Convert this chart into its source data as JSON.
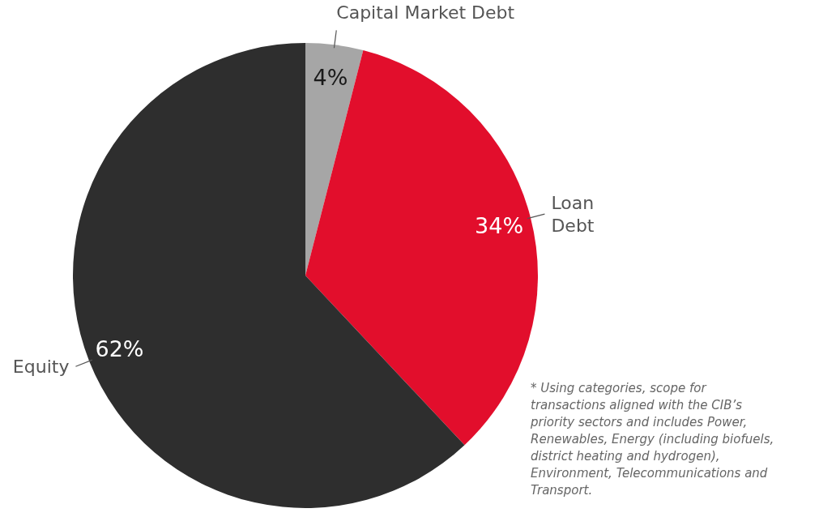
{
  "chart_data": {
    "type": "pie",
    "categories": [
      "Capital Market Debt",
      "Loan Debt",
      "Equity"
    ],
    "values": [
      4,
      34,
      62
    ],
    "colors": [
      "#a6a6a6",
      "#e20e2c",
      "#2e2e2e"
    ],
    "value_labels": [
      "4%",
      "34%",
      "62%"
    ],
    "annotations": [
      "* Using categories, scope for transactions aligned with the CIB’s priority sectors and includes Power, Renewables, Energy (including biofuels, district heating and hydrogen), Environment, Telecommunications and Transport."
    ]
  }
}
